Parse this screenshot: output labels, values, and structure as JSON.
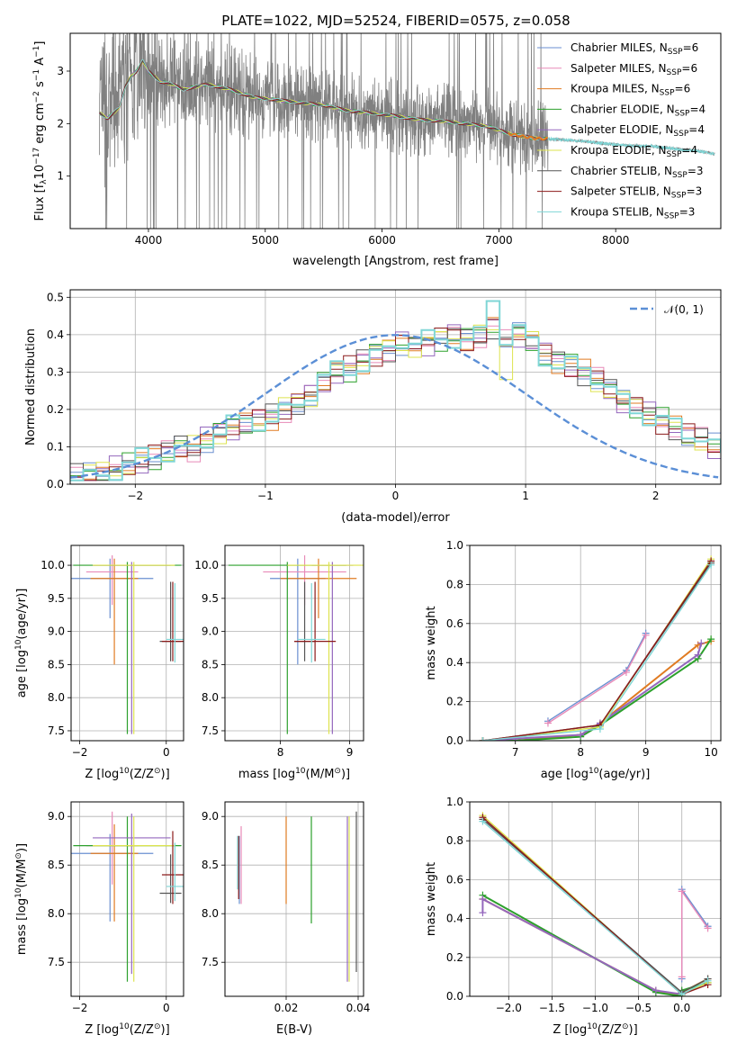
{
  "colors": {
    "spectrum": "#808080",
    "series": [
      "#6a8fd0",
      "#e88ab8",
      "#e07b22",
      "#2ca02c",
      "#9467bd",
      "#dde34e",
      "#555555",
      "#8b1a1a",
      "#7fd6d6"
    ],
    "gaussian": "#5b8fd6"
  },
  "legend_names": [
    "Chabrier MILES, N",
    "Salpeter MILES, N",
    "Kroupa MILES, N",
    "Chabrier ELODIE, N",
    "Salpeter ELODIE, N",
    "Kroupa ELODIE, N",
    "Chabrier STELIB, N",
    "Salpeter STELIB, N",
    "Kroupa STELIB, N"
  ],
  "legend_sub": "SSP",
  "legend_counts": [
    "=6",
    "=6",
    "=6",
    "=4",
    "=4",
    "=4",
    "=3",
    "=3",
    "=3"
  ],
  "chart_data": [
    {
      "type": "line",
      "title": "PLATE=1022, MJD=52524, FIBERID=0575, z=0.058",
      "xlabel": "wavelength [Angstrom, rest frame]",
      "ylabel_parts": [
        "Flux [f",
        "λ",
        "10",
        "−17",
        " erg cm",
        "−2",
        " s",
        "−1",
        " A",
        "−1",
        "]"
      ],
      "xlim": [
        3330,
        8900
      ],
      "ylim": [
        0,
        3.72
      ],
      "xticks": [
        4000,
        5000,
        6000,
        7000,
        8000
      ],
      "yticks": [
        1,
        2,
        3
      ],
      "grid": false,
      "legend": "top-right",
      "data_continuum": {
        "x": [
          3580,
          3650,
          3700,
          3750,
          3800,
          3850,
          3900,
          3950,
          4000,
          4100,
          4200,
          4300,
          4400,
          4500,
          4700,
          4900,
          5100,
          5300,
          5500,
          5700,
          5900,
          6100,
          6300,
          6500,
          6700,
          6900,
          7100,
          7300,
          7500,
          7700,
          7900,
          8100,
          8300,
          8500,
          8700,
          8850
        ],
        "y": [
          2.2,
          2.1,
          2.2,
          2.3,
          2.7,
          2.9,
          3.0,
          3.2,
          3.0,
          2.8,
          2.75,
          2.65,
          2.7,
          2.75,
          2.65,
          2.5,
          2.45,
          2.4,
          2.35,
          2.25,
          2.2,
          2.15,
          2.08,
          2.05,
          2.0,
          1.95,
          1.8,
          1.72,
          1.7,
          1.67,
          1.62,
          1.58,
          1.57,
          1.52,
          1.48,
          1.42
        ]
      },
      "noise_range": [
        3580,
        7420
      ]
    },
    {
      "type": "histogram",
      "xlabel": "(data-model)/error",
      "ylabel": "Normed distribution",
      "xlim": [
        -2.5,
        2.5
      ],
      "ylim": [
        0,
        0.52
      ],
      "xticks": [
        -2,
        -1,
        0,
        1,
        2
      ],
      "yticks": [
        0.0,
        0.1,
        0.2,
        0.3,
        0.4,
        0.5
      ],
      "grid": true,
      "legend": "top-right",
      "legend_label": "𝒩(0, 1)",
      "bin_width": 0.1,
      "bin_start": -2.5,
      "base_values": [
        0.02,
        0.025,
        0.03,
        0.04,
        0.05,
        0.06,
        0.07,
        0.085,
        0.1,
        0.095,
        0.12,
        0.14,
        0.15,
        0.16,
        0.17,
        0.18,
        0.2,
        0.22,
        0.24,
        0.27,
        0.3,
        0.31,
        0.33,
        0.35,
        0.36,
        0.38,
        0.37,
        0.38,
        0.39,
        0.4,
        0.39,
        0.4,
        0.42,
        0.38,
        0.4,
        0.38,
        0.35,
        0.33,
        0.32,
        0.3,
        0.28,
        0.25,
        0.22,
        0.21,
        0.19,
        0.17,
        0.15,
        0.13,
        0.12,
        0.1,
        0.09,
        0.08,
        0.07,
        0.06,
        0.05,
        0.04,
        0.035,
        0.03,
        0.03,
        0.025
      ]
    },
    {
      "type": "errorbar",
      "xlabel": "Z [log10(Z/Z⊙)]",
      "xlabel_parts": [
        "Z [log",
        "10",
        "(Z/Z",
        "⊙",
        ")]"
      ],
      "ylabel_parts": [
        "age  [log",
        "10",
        "(age/yr)]"
      ],
      "xlim": [
        -2.2,
        0.4
      ],
      "ylim": [
        7.35,
        10.3
      ],
      "xticks": [
        -2,
        0
      ],
      "yticks": [
        7.5,
        8.0,
        8.5,
        9.0,
        9.5,
        10.0
      ],
      "grid": true,
      "points": [
        {
          "x": -1.3,
          "y": 9.8,
          "xe": 1.0,
          "yl": 0.6,
          "yh": 0.3
        },
        {
          "x": -1.25,
          "y": 9.9,
          "xe": 0.6,
          "yl": 0.5,
          "yh": 0.25
        },
        {
          "x": -1.2,
          "y": 9.8,
          "xe": 0.55,
          "yl": 1.3,
          "yh": 0.3
        },
        {
          "x": -0.9,
          "y": 10.0,
          "xe": 1.25,
          "yl": 2.55,
          "yh": 0.05
        },
        {
          "x": -0.8,
          "y": 10.0,
          "xe": 0.9,
          "yl": 2.55,
          "yh": 0.05
        },
        {
          "x": -0.75,
          "y": 10.0,
          "xe": 0.95,
          "yl": 2.55,
          "yh": 0.05
        },
        {
          "x": 0.1,
          "y": 8.85,
          "xe": 0.25,
          "yl": 0.3,
          "yh": 0.9
        },
        {
          "x": 0.15,
          "y": 8.85,
          "xe": 0.25,
          "yl": 0.3,
          "yh": 0.9
        },
        {
          "x": 0.2,
          "y": 8.88,
          "xe": 0.2,
          "yl": 0.35,
          "yh": 0.85
        }
      ]
    },
    {
      "type": "errorbar",
      "xlabel_parts": [
        "mass [log",
        "10",
        "(M/M",
        "⊙",
        ")]"
      ],
      "ylabel_parts": [],
      "xlim": [
        7.2,
        9.2
      ],
      "ylim": [
        7.35,
        10.3
      ],
      "xticks": [
        8,
        9
      ],
      "yticks": [
        7.5,
        8.0,
        8.5,
        9.0,
        9.5,
        10.0
      ],
      "grid": true,
      "points": [
        {
          "x": 8.25,
          "y": 9.8,
          "xe": 0.4,
          "yl": 1.3,
          "yh": 0.3
        },
        {
          "x": 8.35,
          "y": 9.9,
          "xe": 0.6,
          "yl": 0.5,
          "yh": 0.25
        },
        {
          "x": 8.55,
          "y": 9.8,
          "xe": 0.55,
          "yl": 0.6,
          "yh": 0.3
        },
        {
          "x": 8.1,
          "y": 10.0,
          "xe": 0.85,
          "yl": 2.55,
          "yh": 0.05
        },
        {
          "x": 8.75,
          "y": 10.0,
          "xe": 0.3,
          "yl": 2.55,
          "yh": 0.05
        },
        {
          "x": 8.7,
          "y": 10.0,
          "xe": 0.6,
          "yl": 2.55,
          "yh": 0.05
        },
        {
          "x": 8.35,
          "y": 8.85,
          "xe": 0.15,
          "yl": 0.3,
          "yh": 0.9
        },
        {
          "x": 8.5,
          "y": 8.85,
          "xe": 0.3,
          "yl": 0.3,
          "yh": 0.9
        },
        {
          "x": 8.45,
          "y": 8.88,
          "xe": 0.2,
          "yl": 0.35,
          "yh": 0.85
        }
      ]
    },
    {
      "type": "line",
      "xlabel_parts": [
        "age  [log",
        "10",
        "(age/yr)]"
      ],
      "ylabel": "mass weight",
      "xlim": [
        6.3,
        10.15
      ],
      "ylim": [
        0,
        1.0
      ],
      "xticks": [
        7,
        8,
        9,
        10
      ],
      "yticks": [
        0.0,
        0.2,
        0.4,
        0.6,
        0.8,
        1.0
      ],
      "grid": true,
      "series": [
        {
          "x": [
            7.5,
            8.7,
            9.0
          ],
          "y": [
            0.1,
            0.36,
            0.55
          ]
        },
        {
          "x": [
            7.5,
            8.7,
            9.0
          ],
          "y": [
            0.09,
            0.35,
            0.54
          ]
        },
        {
          "x": [
            6.5,
            7.0,
            8.0,
            8.3,
            9.8,
            10.0
          ],
          "y": [
            0.0,
            0.0,
            0.03,
            0.09,
            0.49,
            0.51
          ]
        },
        {
          "x": [
            6.5,
            7.0,
            8.0,
            8.3,
            9.8,
            10.0
          ],
          "y": [
            0.0,
            0.0,
            0.02,
            0.08,
            0.42,
            0.52
          ]
        },
        {
          "x": [
            6.5,
            7.0,
            8.0,
            8.3,
            9.8,
            9.85
          ],
          "y": [
            0.0,
            0.01,
            0.03,
            0.09,
            0.44,
            0.5
          ]
        },
        {
          "x": [
            6.5,
            8.3,
            10.0
          ],
          "y": [
            0.0,
            0.07,
            0.93
          ]
        },
        {
          "x": [
            6.5,
            8.3,
            10.0
          ],
          "y": [
            0.0,
            0.08,
            0.91
          ]
        },
        {
          "x": [
            6.5,
            8.3,
            10.0
          ],
          "y": [
            0.0,
            0.08,
            0.92
          ]
        },
        {
          "x": [
            6.5,
            8.3,
            10.0
          ],
          "y": [
            0.0,
            0.06,
            0.9
          ]
        }
      ]
    },
    {
      "type": "errorbar",
      "xlabel_parts": [
        "Z [log",
        "10",
        "(Z/Z",
        "⊙",
        ")]"
      ],
      "ylabel_parts": [
        "mass [log",
        "10",
        "(M/M",
        "⊙",
        ")]"
      ],
      "xlim": [
        -2.2,
        0.4
      ],
      "ylim": [
        7.15,
        9.15
      ],
      "xticks": [
        -2,
        0
      ],
      "yticks": [
        7.5,
        8.0,
        8.5,
        9.0
      ],
      "grid": true,
      "points": [
        {
          "x": -1.3,
          "y": 8.62,
          "xe": 1.0,
          "yl": 0.7,
          "yh": 0.2
        },
        {
          "x": -1.25,
          "y": 8.7,
          "xe": 0.6,
          "yl": 0.4,
          "yh": 0.35
        },
        {
          "x": -1.2,
          "y": 8.62,
          "xe": 0.55,
          "yl": 0.7,
          "yh": 0.3
        },
        {
          "x": -0.9,
          "y": 8.7,
          "xe": 1.25,
          "yl": 1.4,
          "yh": 0.3
        },
        {
          "x": -0.8,
          "y": 8.78,
          "xe": 0.9,
          "yl": 1.4,
          "yh": 0.25
        },
        {
          "x": -0.75,
          "y": 8.7,
          "xe": 0.95,
          "yl": 1.4,
          "yh": 0.3
        },
        {
          "x": 0.1,
          "y": 8.21,
          "xe": 0.25,
          "yl": 0.1,
          "yh": 0.4
        },
        {
          "x": 0.15,
          "y": 8.4,
          "xe": 0.25,
          "yl": 0.3,
          "yh": 0.45
        },
        {
          "x": 0.2,
          "y": 8.28,
          "xe": 0.2,
          "yl": 0.15,
          "yh": 0.45
        }
      ]
    },
    {
      "type": "errorbar",
      "xlabel": "E(B-V)",
      "ylabel_parts": [],
      "xlim": [
        0.003,
        0.0415
      ],
      "ylim": [
        7.15,
        9.15
      ],
      "xticks": [
        0.02,
        0.04
      ],
      "yticks": [
        7.5,
        8.0,
        8.5,
        9.0
      ],
      "grid": true,
      "points": [
        {
          "x": 0.007,
          "y": 8.4,
          "xe": 0,
          "yl": 0.3,
          "yh": 0.4
        },
        {
          "x": 0.0075,
          "y": 8.5,
          "xe": 0,
          "yl": 0.4,
          "yh": 0.4
        },
        {
          "x": 0.02,
          "y": 8.6,
          "xe": 0,
          "yl": 0.5,
          "yh": 0.4
        },
        {
          "x": 0.027,
          "y": 8.5,
          "xe": 0,
          "yl": 0.6,
          "yh": 0.5
        },
        {
          "x": 0.037,
          "y": 8.2,
          "xe": 0,
          "yl": 0.9,
          "yh": 0.8
        },
        {
          "x": 0.0375,
          "y": 8.2,
          "xe": 0,
          "yl": 0.9,
          "yh": 0.8
        },
        {
          "x": 0.0395,
          "y": 8.2,
          "xe": 0,
          "yl": 0.8,
          "yh": 0.85
        },
        {
          "x": 0.0068,
          "y": 8.45,
          "xe": 0,
          "yl": 0.3,
          "yh": 0.35
        },
        {
          "x": 0.0065,
          "y": 8.5,
          "xe": 0,
          "yl": 0.25,
          "yh": 0.3
        }
      ]
    },
    {
      "type": "line",
      "xlabel_parts": [
        "Z [log",
        "10",
        "(Z/Z",
        "⊙",
        ")]"
      ],
      "ylabel": "mass weight",
      "xlim": [
        -2.45,
        0.45
      ],
      "ylim": [
        0,
        1.0
      ],
      "xticks": [
        -2.0,
        -1.5,
        -1.0,
        -0.5,
        0.0
      ],
      "yticks": [
        0.0,
        0.2,
        0.4,
        0.6,
        0.8,
        1.0
      ],
      "grid": true,
      "series": [
        {
          "x": [
            0.0,
            0.0,
            0.3
          ],
          "y": [
            0.09,
            0.55,
            0.36
          ]
        },
        {
          "x": [
            0.0,
            0.0,
            0.3
          ],
          "y": [
            0.1,
            0.54,
            0.35
          ]
        },
        {
          "x": [
            -2.3,
            -0.3,
            0.0,
            0.0,
            0.3
          ],
          "y": [
            0.5,
            0.03,
            0.0,
            0.02,
            0.09
          ]
        },
        {
          "x": [
            -2.3,
            -0.3,
            0.0,
            0.0,
            0.3
          ],
          "y": [
            0.52,
            0.02,
            0.0,
            0.03,
            0.07
          ]
        },
        {
          "x": [
            -2.3,
            -2.3,
            -0.3,
            0.0
          ],
          "y": [
            0.43,
            0.5,
            0.03,
            0.01
          ]
        },
        {
          "x": [
            -2.3,
            0.0,
            0.3
          ],
          "y": [
            0.93,
            0.01,
            0.07
          ]
        },
        {
          "x": [
            -2.3,
            0.0,
            0.3
          ],
          "y": [
            0.91,
            0.02,
            0.09
          ]
        },
        {
          "x": [
            -2.3,
            0.0,
            0.3
          ],
          "y": [
            0.92,
            0.01,
            0.06
          ]
        },
        {
          "x": [
            -2.3,
            0.0,
            0.3
          ],
          "y": [
            0.9,
            0.01,
            0.08
          ]
        }
      ]
    }
  ]
}
